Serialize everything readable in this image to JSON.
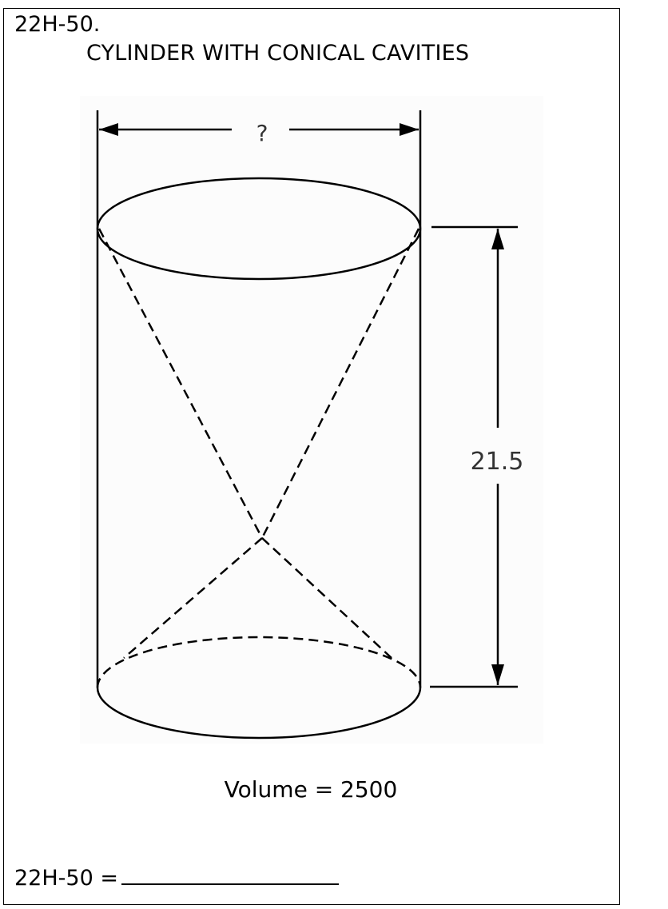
{
  "problem": {
    "id": "22H-50.",
    "title": "CYLINDER WITH CONICAL CAVITIES"
  },
  "diagram": {
    "diameter_label": "?",
    "height_label": "21.5"
  },
  "volume_text": "Volume = 2500",
  "answer": {
    "label": "22H-50 ="
  }
}
